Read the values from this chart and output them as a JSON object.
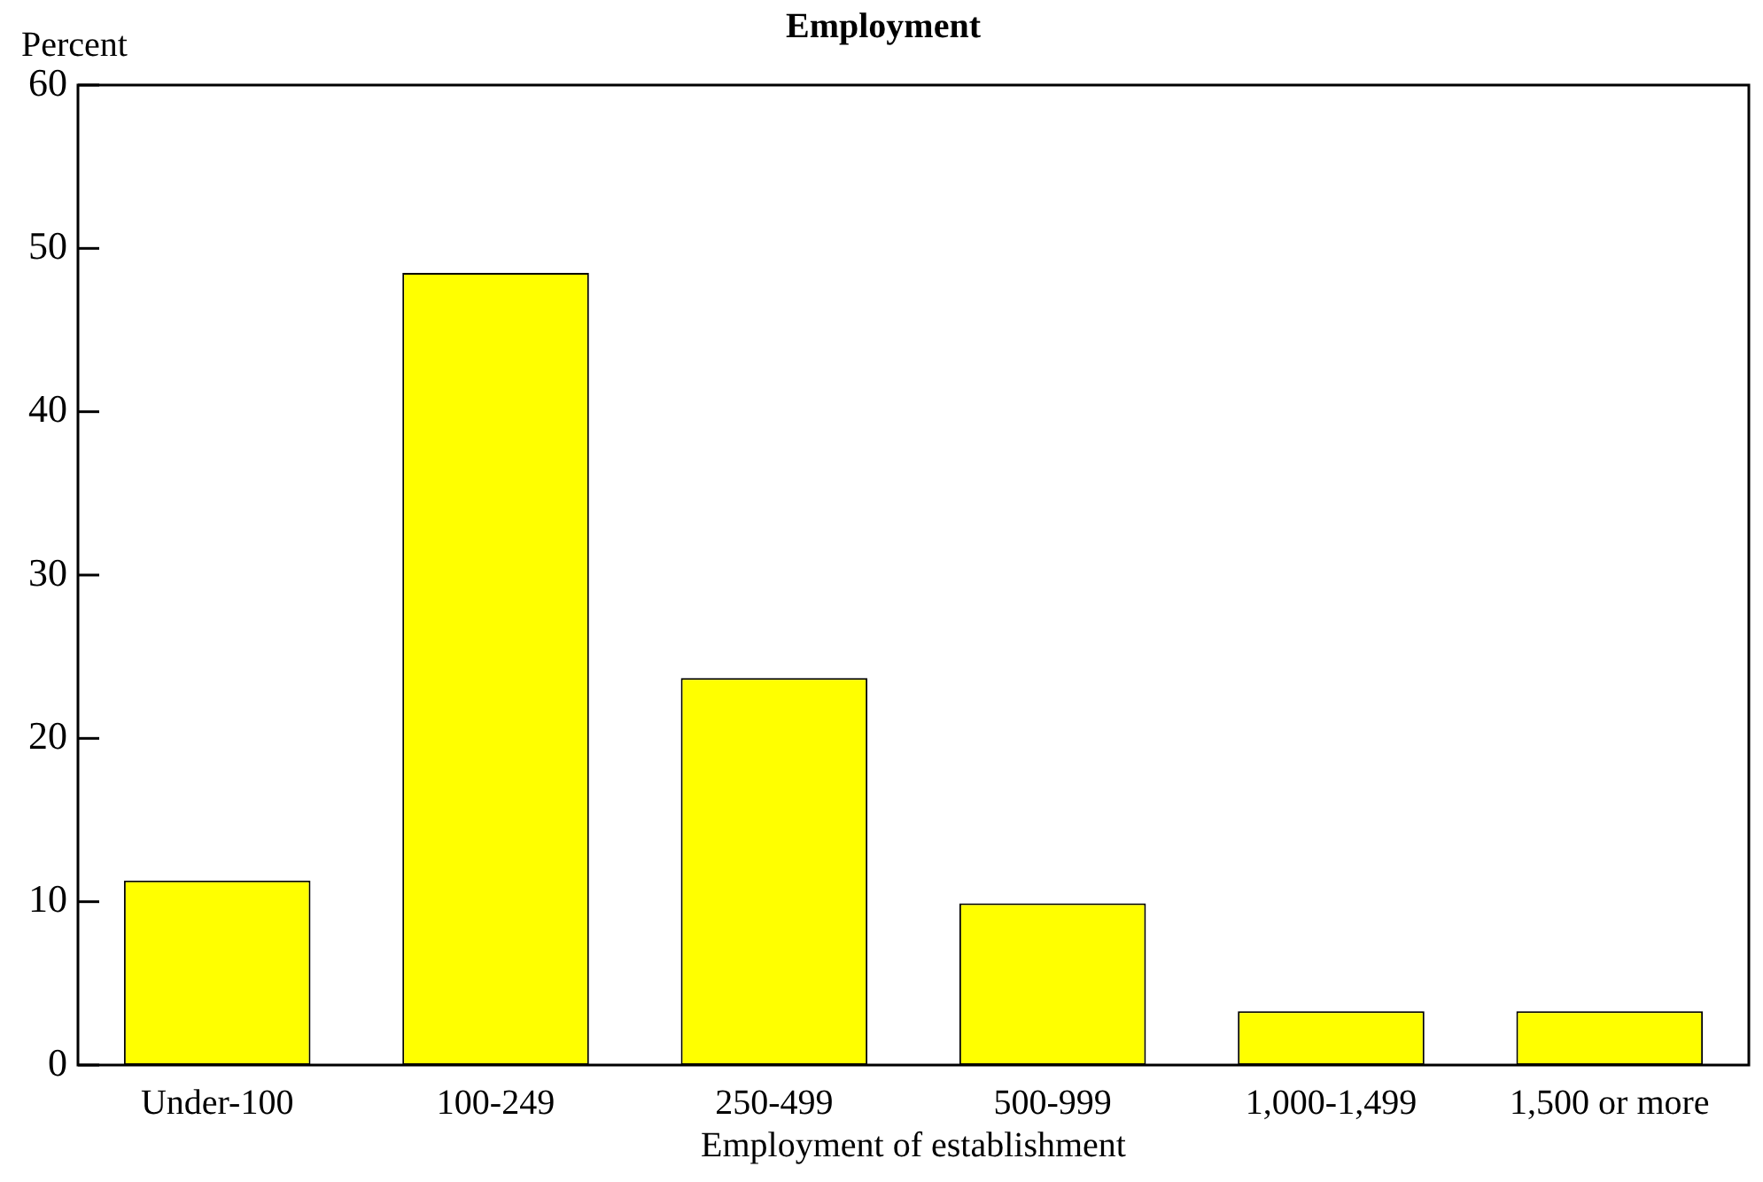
{
  "chart_data": {
    "type": "bar",
    "title": "Employment",
    "xlabel": "Employment of establishment",
    "ylabel": "Percent",
    "categories": [
      "Under-100",
      "100-249",
      "250-499",
      "500-999",
      "1,000-1,499",
      "1,500 or more"
    ],
    "values": [
      11.3,
      48.5,
      23.7,
      9.9,
      3.3,
      3.3
    ],
    "color": "#ffff00",
    "ylim": [
      0,
      60
    ],
    "yticks": [
      0,
      10,
      20,
      30,
      40,
      50,
      60
    ],
    "grid": false,
    "legend": false
  }
}
